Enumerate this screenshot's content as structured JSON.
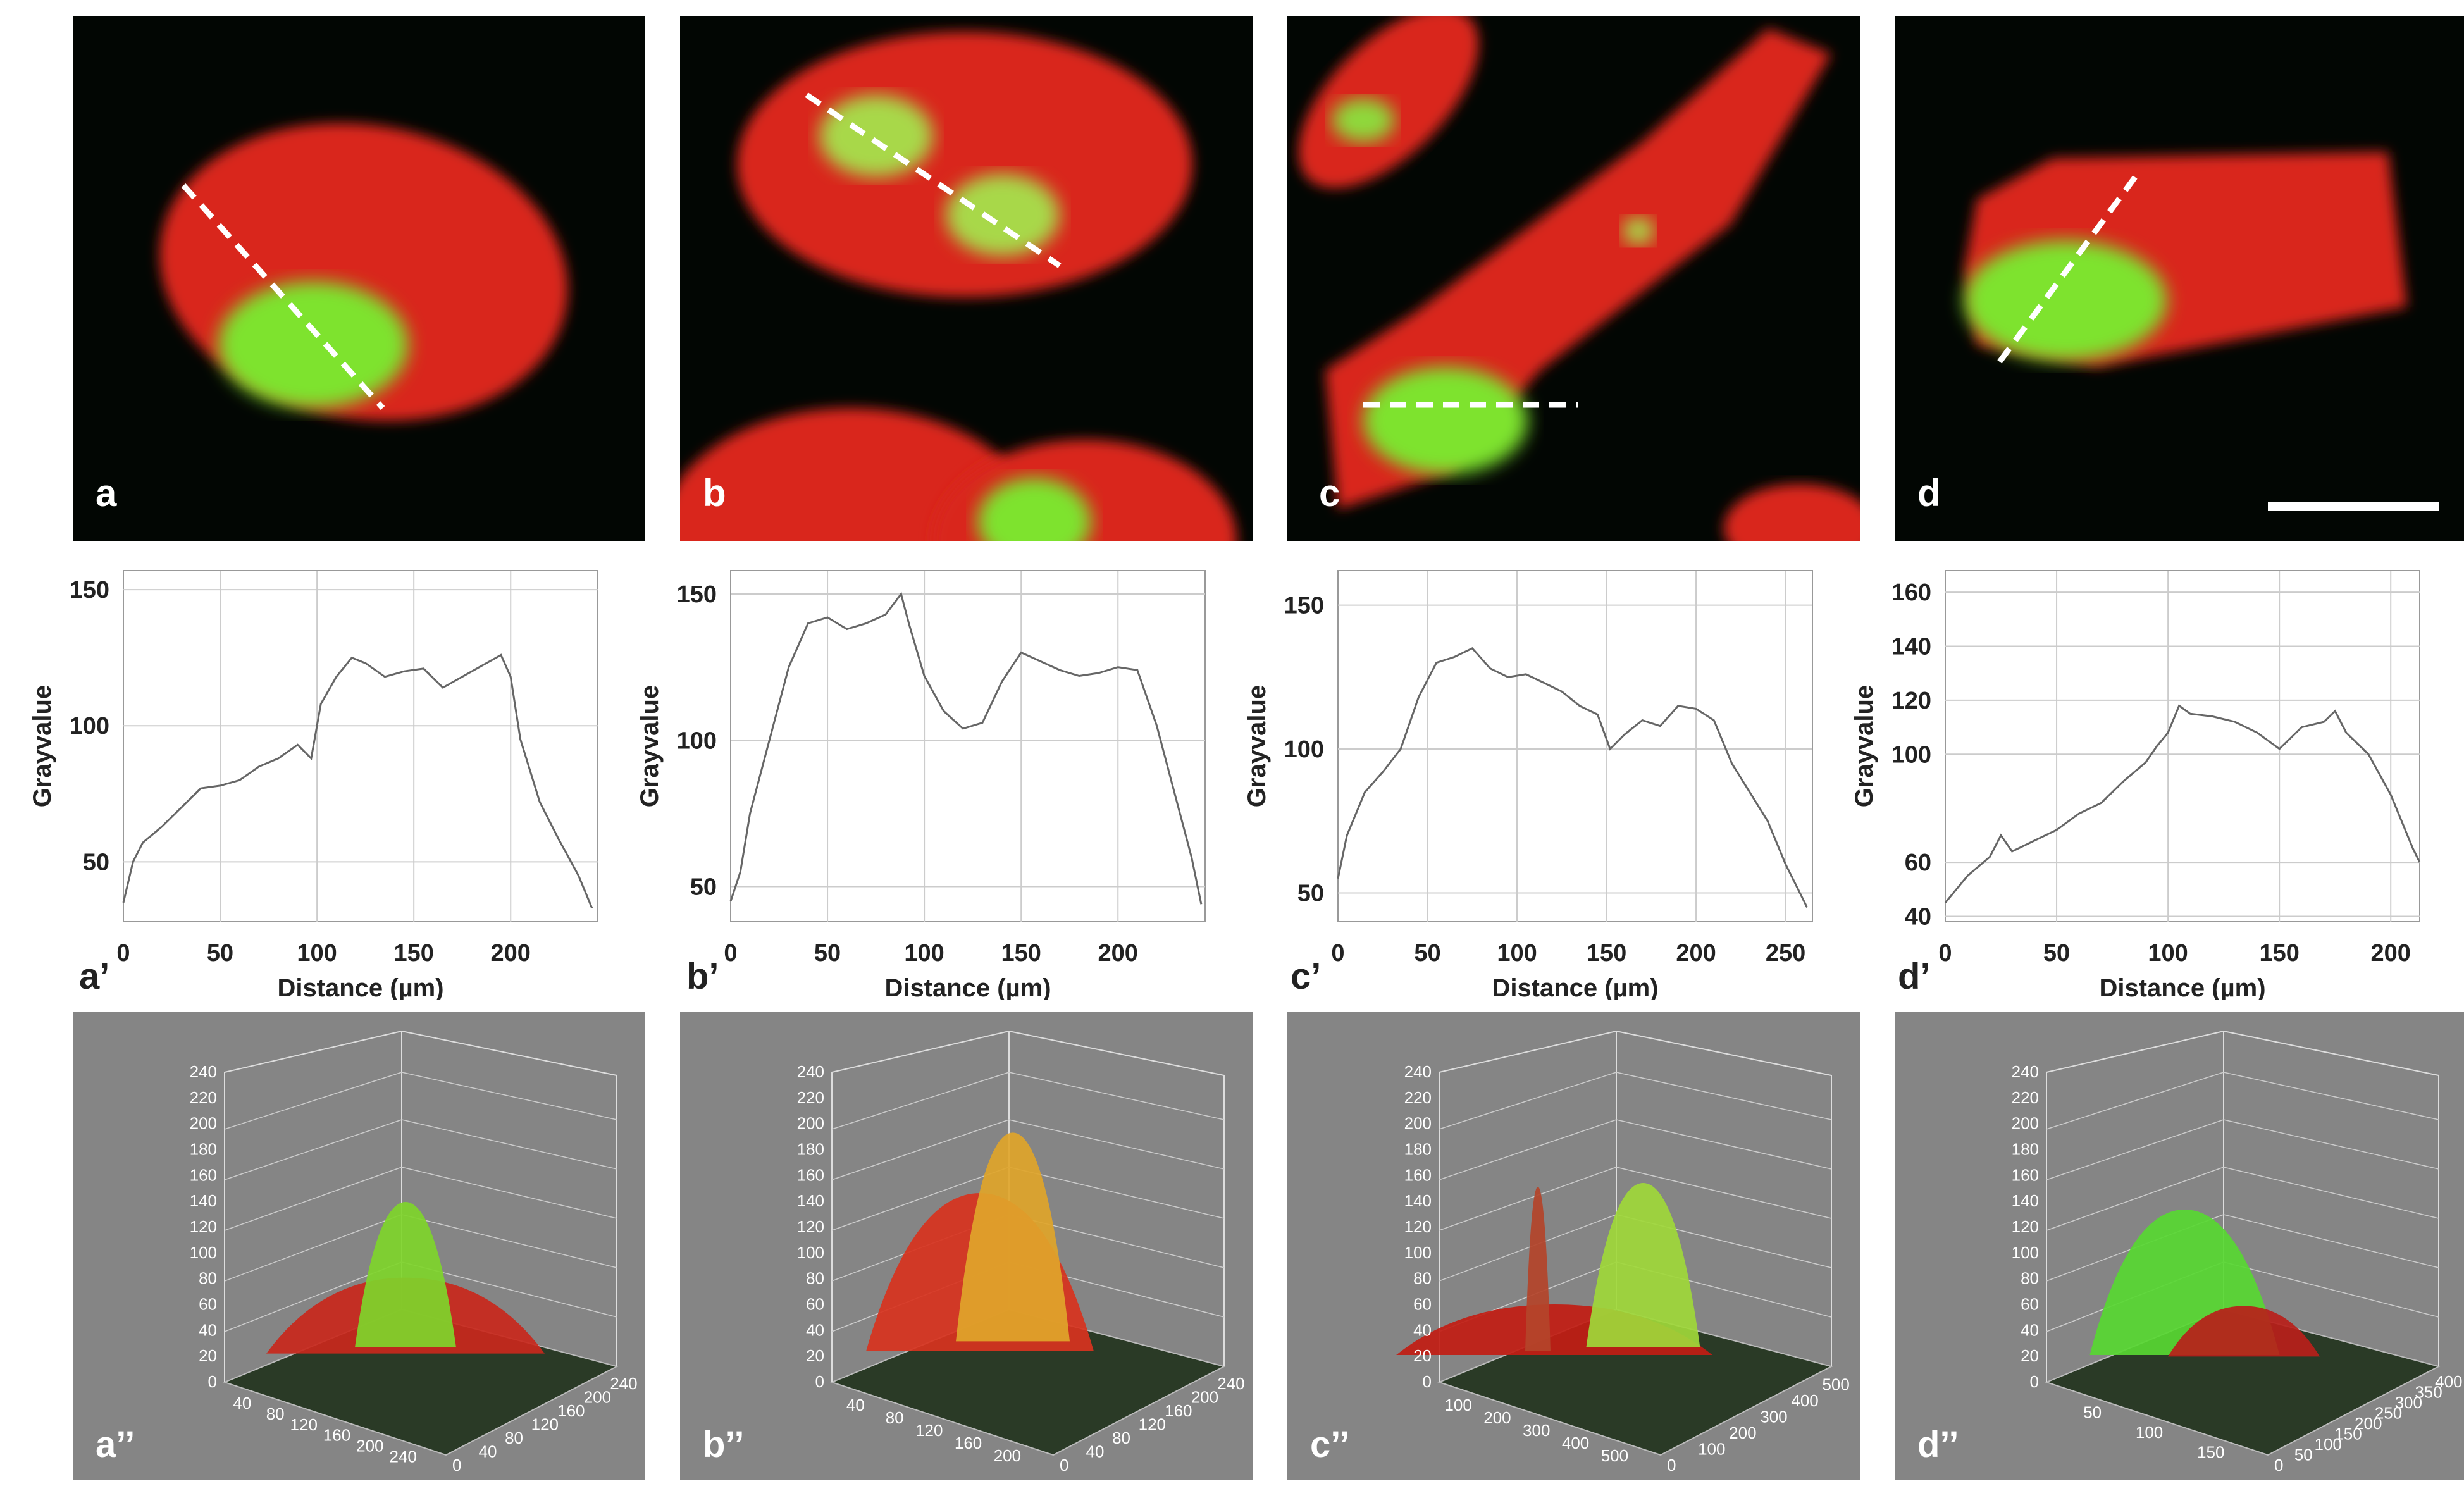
{
  "panels": {
    "micro": [
      {
        "label": "a"
      },
      {
        "label": "b"
      },
      {
        "label": "c"
      },
      {
        "label": "d"
      }
    ],
    "profile_labels": [
      "a’",
      "b’",
      "c’",
      "d’"
    ],
    "surface_labels": [
      "a’’",
      "b’’",
      "c’’",
      "d’’"
    ]
  },
  "colors": {
    "cytoplasm": "#d9261b",
    "nucleus": "#76e12a",
    "background": "#020603",
    "surface_bg": "#858585"
  },
  "chart_data": [
    {
      "type": "line",
      "id": "a'",
      "xlabel": "Distance (µm)",
      "ylabel": "Grayvalue",
      "xlim": [
        0,
        245
      ],
      "ylim": [
        28,
        157
      ],
      "xticks": [
        0,
        50,
        100,
        150,
        200
      ],
      "yticks": [
        50,
        100,
        150
      ],
      "x": [
        0,
        5,
        10,
        20,
        30,
        40,
        50,
        60,
        70,
        80,
        90,
        97,
        102,
        110,
        118,
        125,
        135,
        145,
        155,
        165,
        175,
        185,
        195,
        200,
        205,
        215,
        225,
        235,
        242
      ],
      "y": [
        35,
        50,
        57,
        63,
        70,
        77,
        78,
        80,
        85,
        88,
        93,
        88,
        108,
        118,
        125,
        123,
        118,
        120,
        121,
        114,
        118,
        122,
        126,
        118,
        95,
        72,
        58,
        45,
        33
      ]
    },
    {
      "type": "line",
      "id": "b'",
      "xlabel": "Distance (µm)",
      "ylabel": "Grayvalue",
      "xlim": [
        0,
        245
      ],
      "ylim": [
        38,
        158
      ],
      "xticks": [
        0,
        50,
        100,
        150,
        200
      ],
      "yticks": [
        50,
        100,
        150
      ],
      "x": [
        0,
        5,
        10,
        20,
        30,
        40,
        50,
        60,
        70,
        80,
        88,
        92,
        100,
        110,
        120,
        130,
        140,
        150,
        160,
        170,
        180,
        190,
        200,
        210,
        220,
        230,
        238,
        243
      ],
      "y": [
        45,
        55,
        75,
        100,
        125,
        140,
        142,
        138,
        140,
        143,
        150,
        140,
        122,
        110,
        104,
        106,
        120,
        130,
        127,
        124,
        122,
        123,
        125,
        124,
        105,
        80,
        60,
        44
      ]
    },
    {
      "type": "line",
      "id": "c'",
      "xlabel": "Distance (µm)",
      "ylabel": "Grayvalue",
      "xlim": [
        0,
        265
      ],
      "ylim": [
        40,
        162
      ],
      "xticks": [
        0,
        50,
        100,
        150,
        200,
        250
      ],
      "yticks": [
        50,
        100,
        150
      ],
      "x": [
        0,
        5,
        15,
        25,
        35,
        45,
        55,
        65,
        75,
        85,
        95,
        105,
        115,
        125,
        135,
        145,
        152,
        160,
        170,
        180,
        190,
        200,
        210,
        220,
        230,
        240,
        250,
        258,
        262
      ],
      "y": [
        55,
        70,
        85,
        92,
        100,
        118,
        130,
        132,
        135,
        128,
        125,
        126,
        123,
        120,
        115,
        112,
        100,
        105,
        110,
        108,
        115,
        114,
        110,
        95,
        85,
        75,
        60,
        50,
        45
      ]
    },
    {
      "type": "line",
      "id": "d'",
      "xlabel": "Distance (µm)",
      "ylabel": "Grayvalue",
      "xlim": [
        0,
        213
      ],
      "ylim": [
        38,
        168
      ],
      "xticks": [
        0,
        50,
        100,
        150,
        200
      ],
      "yticks": [
        40,
        60,
        100,
        120,
        140,
        160
      ],
      "x": [
        0,
        5,
        10,
        20,
        25,
        30,
        40,
        50,
        60,
        70,
        80,
        90,
        95,
        100,
        105,
        110,
        120,
        130,
        140,
        150,
        155,
        160,
        170,
        175,
        180,
        190,
        200,
        210,
        213
      ],
      "y": [
        45,
        50,
        55,
        62,
        70,
        64,
        68,
        72,
        78,
        82,
        90,
        97,
        103,
        108,
        118,
        115,
        114,
        112,
        108,
        102,
        106,
        110,
        112,
        116,
        108,
        100,
        85,
        65,
        60
      ]
    }
  ],
  "surface_ticks": {
    "z": [
      "0",
      "20",
      "40",
      "60",
      "80",
      "100",
      "120",
      "140",
      "160",
      "180",
      "200",
      "220",
      "240"
    ],
    "a": {
      "left": [
        "40",
        "80",
        "120",
        "160",
        "200",
        "240"
      ],
      "right": [
        "0",
        "40",
        "80",
        "120",
        "160",
        "200",
        "240"
      ]
    },
    "b": {
      "left": [
        "40",
        "80",
        "120",
        "160",
        "200"
      ],
      "right": [
        "0",
        "40",
        "80",
        "120",
        "160",
        "200",
        "240"
      ]
    },
    "c": {
      "left": [
        "100",
        "200",
        "300",
        "400",
        "500"
      ],
      "right": [
        "0",
        "100",
        "200",
        "300",
        "400",
        "500"
      ]
    },
    "d": {
      "left": [
        "50",
        "100",
        "150"
      ],
      "right": [
        "0",
        "50",
        "100",
        "150",
        "200",
        "250",
        "300",
        "350",
        "400"
      ]
    }
  }
}
